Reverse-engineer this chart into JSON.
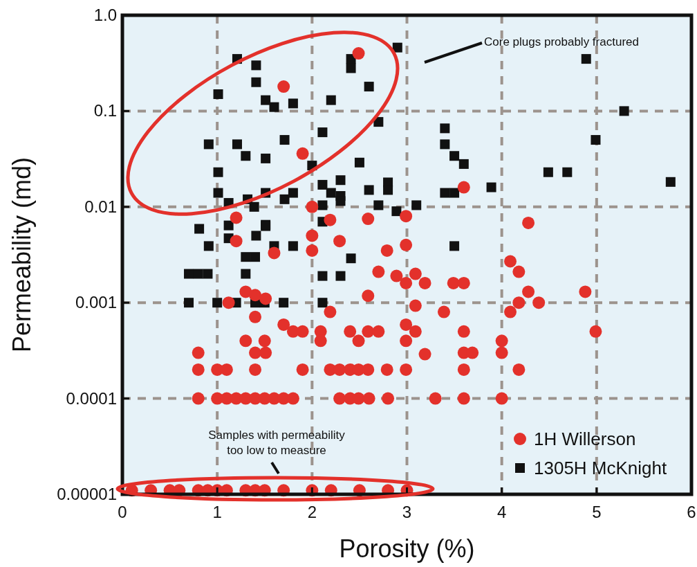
{
  "chart_data": {
    "type": "scatter",
    "xlabel": "Porosity (%)",
    "ylabel": "Permeability (md)",
    "xlim": [
      0,
      6
    ],
    "xticks": [
      0,
      1,
      2,
      3,
      4,
      5,
      6
    ],
    "ylim": [
      1e-05,
      1
    ],
    "yticks": [
      {
        "value": 1e-05,
        "label": "0.00001"
      },
      {
        "value": 0.0001,
        "label": "0.0001"
      },
      {
        "value": 0.001,
        "label": "0.001"
      },
      {
        "value": 0.01,
        "label": "0.01"
      },
      {
        "value": 0.1,
        "label": "0.1"
      },
      {
        "value": 1,
        "label": "1.0"
      }
    ],
    "log": "y",
    "grid": true,
    "legend": "bottom right",
    "annotations": [
      "Core plugs probably fractured",
      "Samples with permeability too low to measure"
    ],
    "series": [
      {
        "name": "1305H McKnight",
        "color": "#111111",
        "marker": "square",
        "x": [
          1.21,
          1.41,
          1.41,
          1.01,
          1.51,
          1.6,
          1.8,
          1.71,
          0.91,
          1.21,
          1.3,
          1.51,
          1.01,
          2.0,
          1.01,
          1.12,
          1.32,
          1.39,
          1.51,
          1.51,
          1.71,
          1.8,
          0.81,
          1.12,
          1.12,
          1.41,
          1.51,
          0.91,
          1.6,
          1.8,
          0.7,
          0.8,
          0.9,
          1.3,
          1.4,
          1.3,
          0.7,
          1.0,
          1.2,
          1.4,
          1.5,
          1.7,
          2.9,
          2.41,
          2.41,
          2.6,
          2.2,
          2.7,
          2.11,
          2.5,
          3.4,
          3.4,
          3.5,
          3.6,
          3.4,
          3.5,
          3.89,
          2.3,
          2.11,
          2.2,
          2.3,
          2.6,
          2.8,
          2.8,
          2.11,
          2.3,
          2.7,
          2.89,
          3.1,
          2.11,
          3.5,
          2.41,
          2.11,
          2.3,
          2.11,
          4.89,
          5.29,
          4.99,
          4.49,
          4.69,
          5.78
        ],
        "values": [
          0.35,
          0.3,
          0.2,
          0.15,
          0.13,
          0.11,
          0.12,
          0.05,
          0.045,
          0.045,
          0.034,
          0.032,
          0.023,
          0.027,
          0.014,
          0.011,
          0.012,
          0.01,
          0.014,
          0.0065,
          0.012,
          0.014,
          0.0059,
          0.0064,
          0.0047,
          0.005,
          0.0063,
          0.0039,
          0.0039,
          0.0039,
          0.002,
          0.002,
          0.002,
          0.003,
          0.003,
          0.002,
          0.001,
          0.001,
          0.001,
          0.001,
          0.001,
          0.001,
          0.46,
          0.35,
          0.28,
          0.18,
          0.13,
          0.077,
          0.06,
          0.029,
          0.066,
          0.045,
          0.034,
          0.028,
          0.014,
          0.014,
          0.016,
          0.019,
          0.017,
          0.014,
          0.013,
          0.015,
          0.018,
          0.015,
          0.0104,
          0.0115,
          0.0104,
          0.009,
          0.0104,
          0.007,
          0.0039,
          0.0029,
          0.0019,
          0.0019,
          0.001,
          0.35,
          0.1,
          0.05,
          0.023,
          0.023,
          0.0182
        ]
      },
      {
        "name": "1H Willerson",
        "color": "#e3312b",
        "marker": "circle",
        "x": [
          1.7,
          1.9,
          2.0,
          1.2,
          1.2,
          1.6,
          2.49,
          2.19,
          2.59,
          2.99,
          2.0,
          2.29,
          2.79,
          2.99,
          3.6,
          4.28,
          2.0,
          2.7,
          2.89,
          2.99,
          3.09,
          3.19,
          3.49,
          3.6,
          2.59,
          2.19,
          3.09,
          3.39,
          2.99,
          3.09,
          2.99,
          2.09,
          2.09,
          2.4,
          2.59,
          2.7,
          2.49,
          3.19,
          3.6,
          3.6,
          3.69,
          3.6,
          2.19,
          2.29,
          2.4,
          2.49,
          2.59,
          2.79,
          2.99,
          2.29,
          2.4,
          2.49,
          2.6,
          2.8,
          3.3,
          3.6,
          4.0,
          4.09,
          4.18,
          4.28,
          4.18,
          4.39,
          4.09,
          4.88,
          4.99,
          4.0,
          4.0,
          4.18,
          1.12,
          1.3,
          1.4,
          1.51,
          1.4,
          1.7,
          1.8,
          1.9,
          1.3,
          1.5,
          1.4,
          1.51,
          0.8,
          0.8,
          1.0,
          1.1,
          1.4,
          1.9,
          0.8,
          1.0,
          1.1,
          1.2,
          1.3,
          1.4,
          1.5,
          1.6,
          1.7,
          1.8,
          0.1,
          0.3,
          0.5,
          0.6,
          0.8,
          0.9,
          1.0,
          1.1,
          1.3,
          1.4,
          1.5,
          1.7,
          2.0,
          2.2,
          2.5,
          2.8,
          3.0
        ],
        "values": [
          0.18,
          0.036,
          0.01,
          0.0077,
          0.0044,
          0.0033,
          0.4,
          0.0073,
          0.0075,
          0.008,
          0.005,
          0.0044,
          0.0035,
          0.004,
          0.016,
          0.0068,
          0.0035,
          0.0021,
          0.0019,
          0.0016,
          0.002,
          0.0016,
          0.0016,
          0.0016,
          0.00118,
          0.0008,
          0.00093,
          0.0008,
          0.00059,
          0.0005,
          0.0004,
          0.0005,
          0.0004,
          0.0005,
          0.0005,
          0.0005,
          0.0004,
          0.00029,
          0.0005,
          0.0003,
          0.0003,
          0.0002,
          0.0002,
          0.0002,
          0.0002,
          0.0002,
          0.0002,
          0.0002,
          0.0002,
          0.0001,
          0.0001,
          0.0001,
          0.0001,
          0.0001,
          0.0001,
          0.0001,
          0.0001,
          0.0027,
          0.0021,
          0.0013,
          0.001,
          0.001,
          0.0008,
          0.0013,
          0.0005,
          0.0004,
          0.0003,
          0.0002,
          0.001,
          0.0013,
          0.0012,
          0.0011,
          0.00071,
          0.00059,
          0.0005,
          0.0005,
          0.0004,
          0.0004,
          0.0003,
          0.0003,
          0.0003,
          0.0002,
          0.0002,
          0.0002,
          0.0002,
          0.0002,
          0.0001,
          0.0001,
          0.0001,
          0.0001,
          0.0001,
          0.0001,
          0.0001,
          0.0001,
          0.0001,
          0.0001,
          1.1e-05,
          1.1e-05,
          1.1e-05,
          1.1e-05,
          1.1e-05,
          1.1e-05,
          1.1e-05,
          1.1e-05,
          1.1e-05,
          1.1e-05,
          1.1e-05,
          1.1e-05,
          1.1e-05,
          1.1e-05,
          1.1e-05,
          1.1e-05,
          1.1e-05
        ]
      }
    ]
  }
}
